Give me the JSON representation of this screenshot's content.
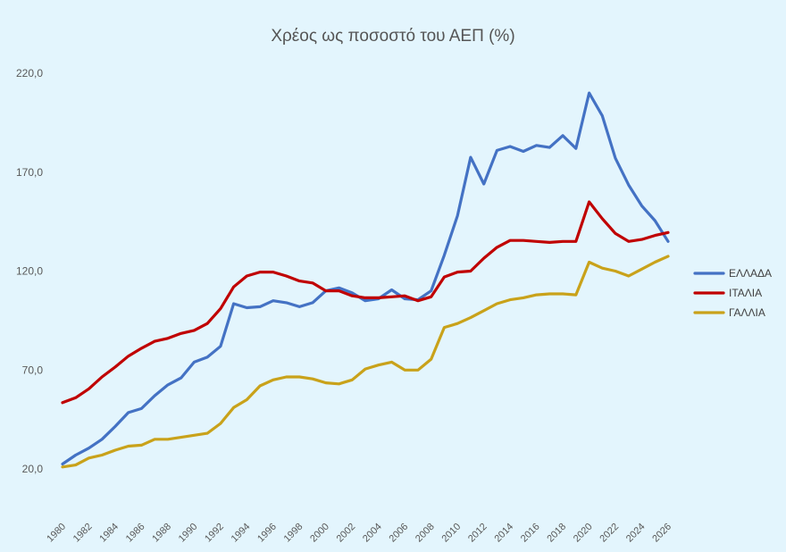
{
  "chart_data": {
    "type": "line",
    "title": "Χρέος ως ποσοστό του ΑΕΠ (%)",
    "xlabel": "",
    "ylabel": "",
    "ylim": [
      20,
      220
    ],
    "y_ticks": [
      "220,0",
      "170,0",
      "120,0",
      "70,0",
      "20,0"
    ],
    "y_tick_values": [
      220,
      170,
      120,
      70,
      20
    ],
    "x_tick_labels": [
      "1980",
      "1982",
      "1984",
      "1986",
      "1988",
      "1990",
      "1992",
      "1994",
      "1996",
      "1998",
      "2000",
      "2002",
      "2004",
      "2006",
      "2008",
      "2010",
      "2012",
      "2014",
      "2016",
      "2018",
      "2020",
      "2022",
      "2024",
      "2026"
    ],
    "x": [
      1980,
      1981,
      1982,
      1983,
      1984,
      1985,
      1986,
      1987,
      1988,
      1989,
      1990,
      1991,
      1992,
      1993,
      1994,
      1995,
      1996,
      1997,
      1998,
      1999,
      2000,
      2001,
      2002,
      2003,
      2004,
      2005,
      2006,
      2007,
      2008,
      2009,
      2010,
      2011,
      2012,
      2013,
      2014,
      2015,
      2016,
      2017,
      2018,
      2019,
      2020,
      2021,
      2022,
      2023,
      2024,
      2025,
      2026
    ],
    "grid": false,
    "legend_position": "right",
    "series": [
      {
        "name": "ΕΛΛΑΔΑ",
        "color": "#4472c4",
        "values": [
          22.5,
          27,
          30.5,
          35,
          41.5,
          48.5,
          50.5,
          57,
          62.5,
          66,
          74,
          76.5,
          82,
          103.5,
          101.5,
          102,
          105,
          104,
          102,
          104,
          110,
          111.5,
          109,
          105,
          106,
          110.5,
          106,
          105.5,
          110,
          128,
          148,
          177.5,
          164,
          181,
          183,
          180.5,
          183.5,
          182.5,
          188.5,
          182,
          210,
          198.5,
          177,
          163.5,
          153,
          145.5,
          135
        ]
      },
      {
        "name": "ΙΤΑΛΙΑ",
        "color": "#c00000",
        "values": [
          53.5,
          56,
          60.5,
          66.5,
          71.5,
          77,
          81,
          84.5,
          86,
          88.5,
          90,
          93.5,
          101,
          112,
          117.5,
          119.5,
          119.5,
          117.5,
          115,
          114,
          110,
          110,
          107.5,
          106.5,
          106.5,
          107,
          107.5,
          105,
          107,
          117,
          119.5,
          120,
          126.5,
          132,
          135.5,
          135.5,
          135,
          134.5,
          135,
          135,
          155,
          146.5,
          139,
          135,
          136,
          138,
          139.5
        ]
      },
      {
        "name": "ΓΑΛΛΙΑ",
        "color": "#c9a21a",
        "values": [
          21,
          22,
          25.5,
          27,
          29.5,
          31.5,
          32,
          35,
          35,
          36,
          37,
          38,
          43,
          51,
          55,
          62,
          65,
          66.5,
          66.5,
          65.5,
          63.5,
          63,
          65,
          70.5,
          72.5,
          74,
          70,
          70,
          75.5,
          91.5,
          93.5,
          96.5,
          100,
          103.5,
          105.5,
          106.5,
          108,
          108.5,
          108.5,
          108,
          124.5,
          121.5,
          120,
          117.5,
          121,
          124.5,
          127.5
        ]
      }
    ]
  }
}
